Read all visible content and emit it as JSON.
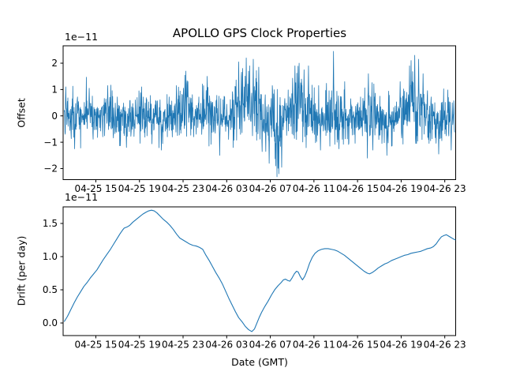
{
  "figure": {
    "background": "#ffffff",
    "accent_line_color": "#1f77b4"
  },
  "chart_data": [
    {
      "type": "line",
      "id": "offset",
      "title": "APOLLO GPS Clock Properties",
      "ylabel": "Offset",
      "scale_label": "1e−11",
      "x_domain_hours": [
        12,
        48
      ],
      "x_ticks": [
        [
          15,
          "04-25 15"
        ],
        [
          19,
          "04-25 19"
        ],
        [
          23,
          "04-25 23"
        ],
        [
          27,
          "04-26 03"
        ],
        [
          31,
          "04-26 07"
        ],
        [
          35,
          "04-26 11"
        ],
        [
          39,
          "04-26 15"
        ],
        [
          43,
          "04-26 19"
        ],
        [
          47,
          "04-26 23"
        ]
      ],
      "y_ticks": [
        [
          -2,
          "−2"
        ],
        [
          -1,
          "−1"
        ],
        [
          0,
          "0"
        ],
        [
          1,
          "1"
        ],
        [
          2,
          "2"
        ]
      ],
      "ylim": [
        -2.42,
        2.66
      ],
      "line_color": "#1f77b4",
      "line_width": 0.8,
      "noise": {
        "n": 1500,
        "t_start": 12.1,
        "t_end": 47.9,
        "seed": 42,
        "sigma_scale": 0.42,
        "clip": [
          -2.32,
          2.5
        ],
        "envelope": [
          [
            12.0,
            0.0,
            1.0
          ],
          [
            13.0,
            -0.05,
            1.05
          ],
          [
            14.0,
            0.0,
            1.0
          ],
          [
            15.0,
            -0.1,
            0.95
          ],
          [
            16.0,
            0.0,
            1.05
          ],
          [
            17.0,
            -0.05,
            0.95
          ],
          [
            18.0,
            -0.1,
            1.0
          ],
          [
            19.0,
            0.0,
            0.95
          ],
          [
            20.0,
            -0.05,
            0.9
          ],
          [
            21.0,
            -0.1,
            1.0
          ],
          [
            22.0,
            0.0,
            1.0
          ],
          [
            23.2,
            0.15,
            1.45
          ],
          [
            24.0,
            0.0,
            1.05
          ],
          [
            25.2,
            0.1,
            1.35
          ],
          [
            26.2,
            -0.1,
            1.15
          ],
          [
            27.0,
            0.0,
            1.0
          ],
          [
            28.0,
            0.25,
            1.55
          ],
          [
            28.7,
            0.45,
            1.85
          ],
          [
            29.5,
            0.3,
            1.85
          ],
          [
            30.2,
            0.0,
            1.3
          ],
          [
            31.0,
            -0.3,
            1.4
          ],
          [
            31.7,
            -0.45,
            1.85
          ],
          [
            32.3,
            -0.1,
            1.2
          ],
          [
            33.0,
            0.2,
            1.45
          ],
          [
            33.6,
            0.4,
            1.65
          ],
          [
            34.4,
            0.25,
            1.55
          ],
          [
            35.1,
            0.0,
            1.15
          ],
          [
            36.0,
            -0.1,
            1.1
          ],
          [
            36.8,
            0.1,
            1.25
          ],
          [
            37.5,
            -0.1,
            1.15
          ],
          [
            38.5,
            0.0,
            1.0
          ],
          [
            39.5,
            0.1,
            1.15
          ],
          [
            40.2,
            0.15,
            1.35
          ],
          [
            41.0,
            -0.1,
            1.15
          ],
          [
            41.8,
            -0.15,
            1.25
          ],
          [
            42.6,
            0.0,
            1.1
          ],
          [
            43.5,
            0.2,
            1.4
          ],
          [
            44.3,
            0.5,
            1.75
          ],
          [
            45.1,
            0.15,
            1.25
          ],
          [
            45.9,
            -0.1,
            1.1
          ],
          [
            46.6,
            -0.15,
            1.15
          ],
          [
            47.3,
            0.0,
            1.05
          ],
          [
            47.9,
            -0.25,
            0.95
          ]
        ],
        "spikes": [
          [
            12.25,
            1.1
          ],
          [
            13.05,
            -1.25
          ],
          [
            14.4,
            1.05
          ],
          [
            16.1,
            1.15
          ],
          [
            17.8,
            -1.2
          ],
          [
            19.2,
            1.1
          ],
          [
            21.0,
            -1.3
          ],
          [
            22.4,
            1.15
          ],
          [
            23.25,
            1.7
          ],
          [
            23.45,
            1.3
          ],
          [
            25.2,
            1.5
          ],
          [
            26.35,
            -1.5
          ],
          [
            28.1,
            2.05
          ],
          [
            28.45,
            1.8
          ],
          [
            28.8,
            2.2
          ],
          [
            29.1,
            1.9
          ],
          [
            29.45,
            2.15
          ],
          [
            29.95,
            1.85
          ],
          [
            30.9,
            -1.8
          ],
          [
            31.5,
            -1.9
          ],
          [
            31.78,
            -2.2
          ],
          [
            32.05,
            -1.95
          ],
          [
            33.25,
            1.9
          ],
          [
            33.65,
            2.0
          ],
          [
            34.1,
            1.75
          ],
          [
            34.5,
            1.9
          ],
          [
            35.6,
            -1.3
          ],
          [
            36.8,
            2.45
          ],
          [
            37.3,
            -1.25
          ],
          [
            40.0,
            1.6
          ],
          [
            40.4,
            -1.3
          ],
          [
            41.7,
            -1.5
          ],
          [
            42.9,
            1.3
          ],
          [
            43.9,
            2.1
          ],
          [
            44.25,
            2.3
          ],
          [
            44.6,
            2.15
          ],
          [
            45.0,
            1.6
          ],
          [
            46.45,
            -1.45
          ],
          [
            47.6,
            -1.3
          ]
        ]
      }
    },
    {
      "type": "line",
      "id": "drift",
      "ylabel": "Drift (per day)",
      "xlabel": "Date (GMT)",
      "scale_label": "1e−11",
      "x_domain_hours": [
        12,
        48
      ],
      "x_ticks": [
        [
          15,
          "04-25 15"
        ],
        [
          19,
          "04-25 19"
        ],
        [
          23,
          "04-25 23"
        ],
        [
          27,
          "04-26 03"
        ],
        [
          31,
          "04-26 07"
        ],
        [
          35,
          "04-26 11"
        ],
        [
          39,
          "04-26 15"
        ],
        [
          43,
          "04-26 19"
        ],
        [
          47,
          "04-26 23"
        ]
      ],
      "y_ticks": [
        [
          0.0,
          "0.0"
        ],
        [
          0.5,
          "0.5"
        ],
        [
          1.0,
          "1.0"
        ],
        [
          1.5,
          "1.5"
        ]
      ],
      "ylim": [
        -0.19,
        1.75
      ],
      "line_color": "#1f77b4",
      "line_width": 1.1,
      "points": [
        [
          12.1,
          0.02
        ],
        [
          12.4,
          0.1
        ],
        [
          12.7,
          0.2
        ],
        [
          13.0,
          0.3
        ],
        [
          13.3,
          0.39
        ],
        [
          13.6,
          0.47
        ],
        [
          13.9,
          0.55
        ],
        [
          14.2,
          0.61
        ],
        [
          14.5,
          0.68
        ],
        [
          14.8,
          0.74
        ],
        [
          15.1,
          0.8
        ],
        [
          15.4,
          0.88
        ],
        [
          15.7,
          0.96
        ],
        [
          16.0,
          1.03
        ],
        [
          16.3,
          1.1
        ],
        [
          16.6,
          1.18
        ],
        [
          16.9,
          1.26
        ],
        [
          17.2,
          1.34
        ],
        [
          17.45,
          1.4
        ],
        [
          17.6,
          1.43
        ],
        [
          17.9,
          1.45
        ],
        [
          18.1,
          1.47
        ],
        [
          18.4,
          1.52
        ],
        [
          18.7,
          1.56
        ],
        [
          19.0,
          1.6
        ],
        [
          19.3,
          1.64
        ],
        [
          19.6,
          1.67
        ],
        [
          19.85,
          1.69
        ],
        [
          20.1,
          1.7
        ],
        [
          20.35,
          1.69
        ],
        [
          20.6,
          1.66
        ],
        [
          20.9,
          1.61
        ],
        [
          21.2,
          1.56
        ],
        [
          21.5,
          1.52
        ],
        [
          21.8,
          1.47
        ],
        [
          22.1,
          1.41
        ],
        [
          22.4,
          1.34
        ],
        [
          22.7,
          1.28
        ],
        [
          23.0,
          1.25
        ],
        [
          23.3,
          1.22
        ],
        [
          23.6,
          1.19
        ],
        [
          23.9,
          1.17
        ],
        [
          24.2,
          1.16
        ],
        [
          24.5,
          1.14
        ],
        [
          24.8,
          1.11
        ],
        [
          25.1,
          1.02
        ],
        [
          25.4,
          0.94
        ],
        [
          25.7,
          0.85
        ],
        [
          26.0,
          0.76
        ],
        [
          26.3,
          0.68
        ],
        [
          26.6,
          0.59
        ],
        [
          26.9,
          0.48
        ],
        [
          27.2,
          0.37
        ],
        [
          27.5,
          0.27
        ],
        [
          27.8,
          0.17
        ],
        [
          28.1,
          0.08
        ],
        [
          28.4,
          0.02
        ],
        [
          28.7,
          -0.05
        ],
        [
          29.0,
          -0.1
        ],
        [
          29.3,
          -0.13
        ],
        [
          29.55,
          -0.09
        ],
        [
          29.8,
          0.01
        ],
        [
          30.0,
          0.09
        ],
        [
          30.2,
          0.16
        ],
        [
          30.5,
          0.25
        ],
        [
          30.8,
          0.33
        ],
        [
          31.1,
          0.42
        ],
        [
          31.4,
          0.5
        ],
        [
          31.7,
          0.56
        ],
        [
          32.0,
          0.61
        ],
        [
          32.2,
          0.65
        ],
        [
          32.4,
          0.66
        ],
        [
          32.6,
          0.64
        ],
        [
          32.8,
          0.63
        ],
        [
          33.0,
          0.68
        ],
        [
          33.2,
          0.74
        ],
        [
          33.4,
          0.78
        ],
        [
          33.55,
          0.77
        ],
        [
          33.75,
          0.7
        ],
        [
          33.95,
          0.65
        ],
        [
          34.15,
          0.7
        ],
        [
          34.35,
          0.78
        ],
        [
          34.6,
          0.9
        ],
        [
          34.85,
          0.99
        ],
        [
          35.1,
          1.05
        ],
        [
          35.4,
          1.09
        ],
        [
          35.7,
          1.11
        ],
        [
          36.0,
          1.12
        ],
        [
          36.3,
          1.12
        ],
        [
          36.6,
          1.11
        ],
        [
          36.9,
          1.1
        ],
        [
          37.2,
          1.08
        ],
        [
          37.5,
          1.05
        ],
        [
          37.8,
          1.02
        ],
        [
          38.1,
          0.98
        ],
        [
          38.4,
          0.94
        ],
        [
          38.7,
          0.9
        ],
        [
          39.0,
          0.86
        ],
        [
          39.3,
          0.82
        ],
        [
          39.6,
          0.78
        ],
        [
          39.9,
          0.75
        ],
        [
          40.1,
          0.74
        ],
        [
          40.35,
          0.76
        ],
        [
          40.6,
          0.79
        ],
        [
          40.9,
          0.83
        ],
        [
          41.2,
          0.86
        ],
        [
          41.5,
          0.89
        ],
        [
          41.8,
          0.91
        ],
        [
          42.1,
          0.94
        ],
        [
          42.4,
          0.96
        ],
        [
          42.7,
          0.98
        ],
        [
          43.0,
          1.0
        ],
        [
          43.3,
          1.02
        ],
        [
          43.6,
          1.03
        ],
        [
          43.9,
          1.05
        ],
        [
          44.2,
          1.06
        ],
        [
          44.5,
          1.07
        ],
        [
          44.8,
          1.08
        ],
        [
          45.1,
          1.1
        ],
        [
          45.4,
          1.12
        ],
        [
          45.7,
          1.13
        ],
        [
          45.95,
          1.15
        ],
        [
          46.2,
          1.19
        ],
        [
          46.45,
          1.25
        ],
        [
          46.7,
          1.3
        ],
        [
          46.95,
          1.32
        ],
        [
          47.15,
          1.33
        ],
        [
          47.35,
          1.31
        ],
        [
          47.55,
          1.29
        ],
        [
          47.75,
          1.27
        ],
        [
          48.0,
          1.25
        ]
      ]
    }
  ]
}
